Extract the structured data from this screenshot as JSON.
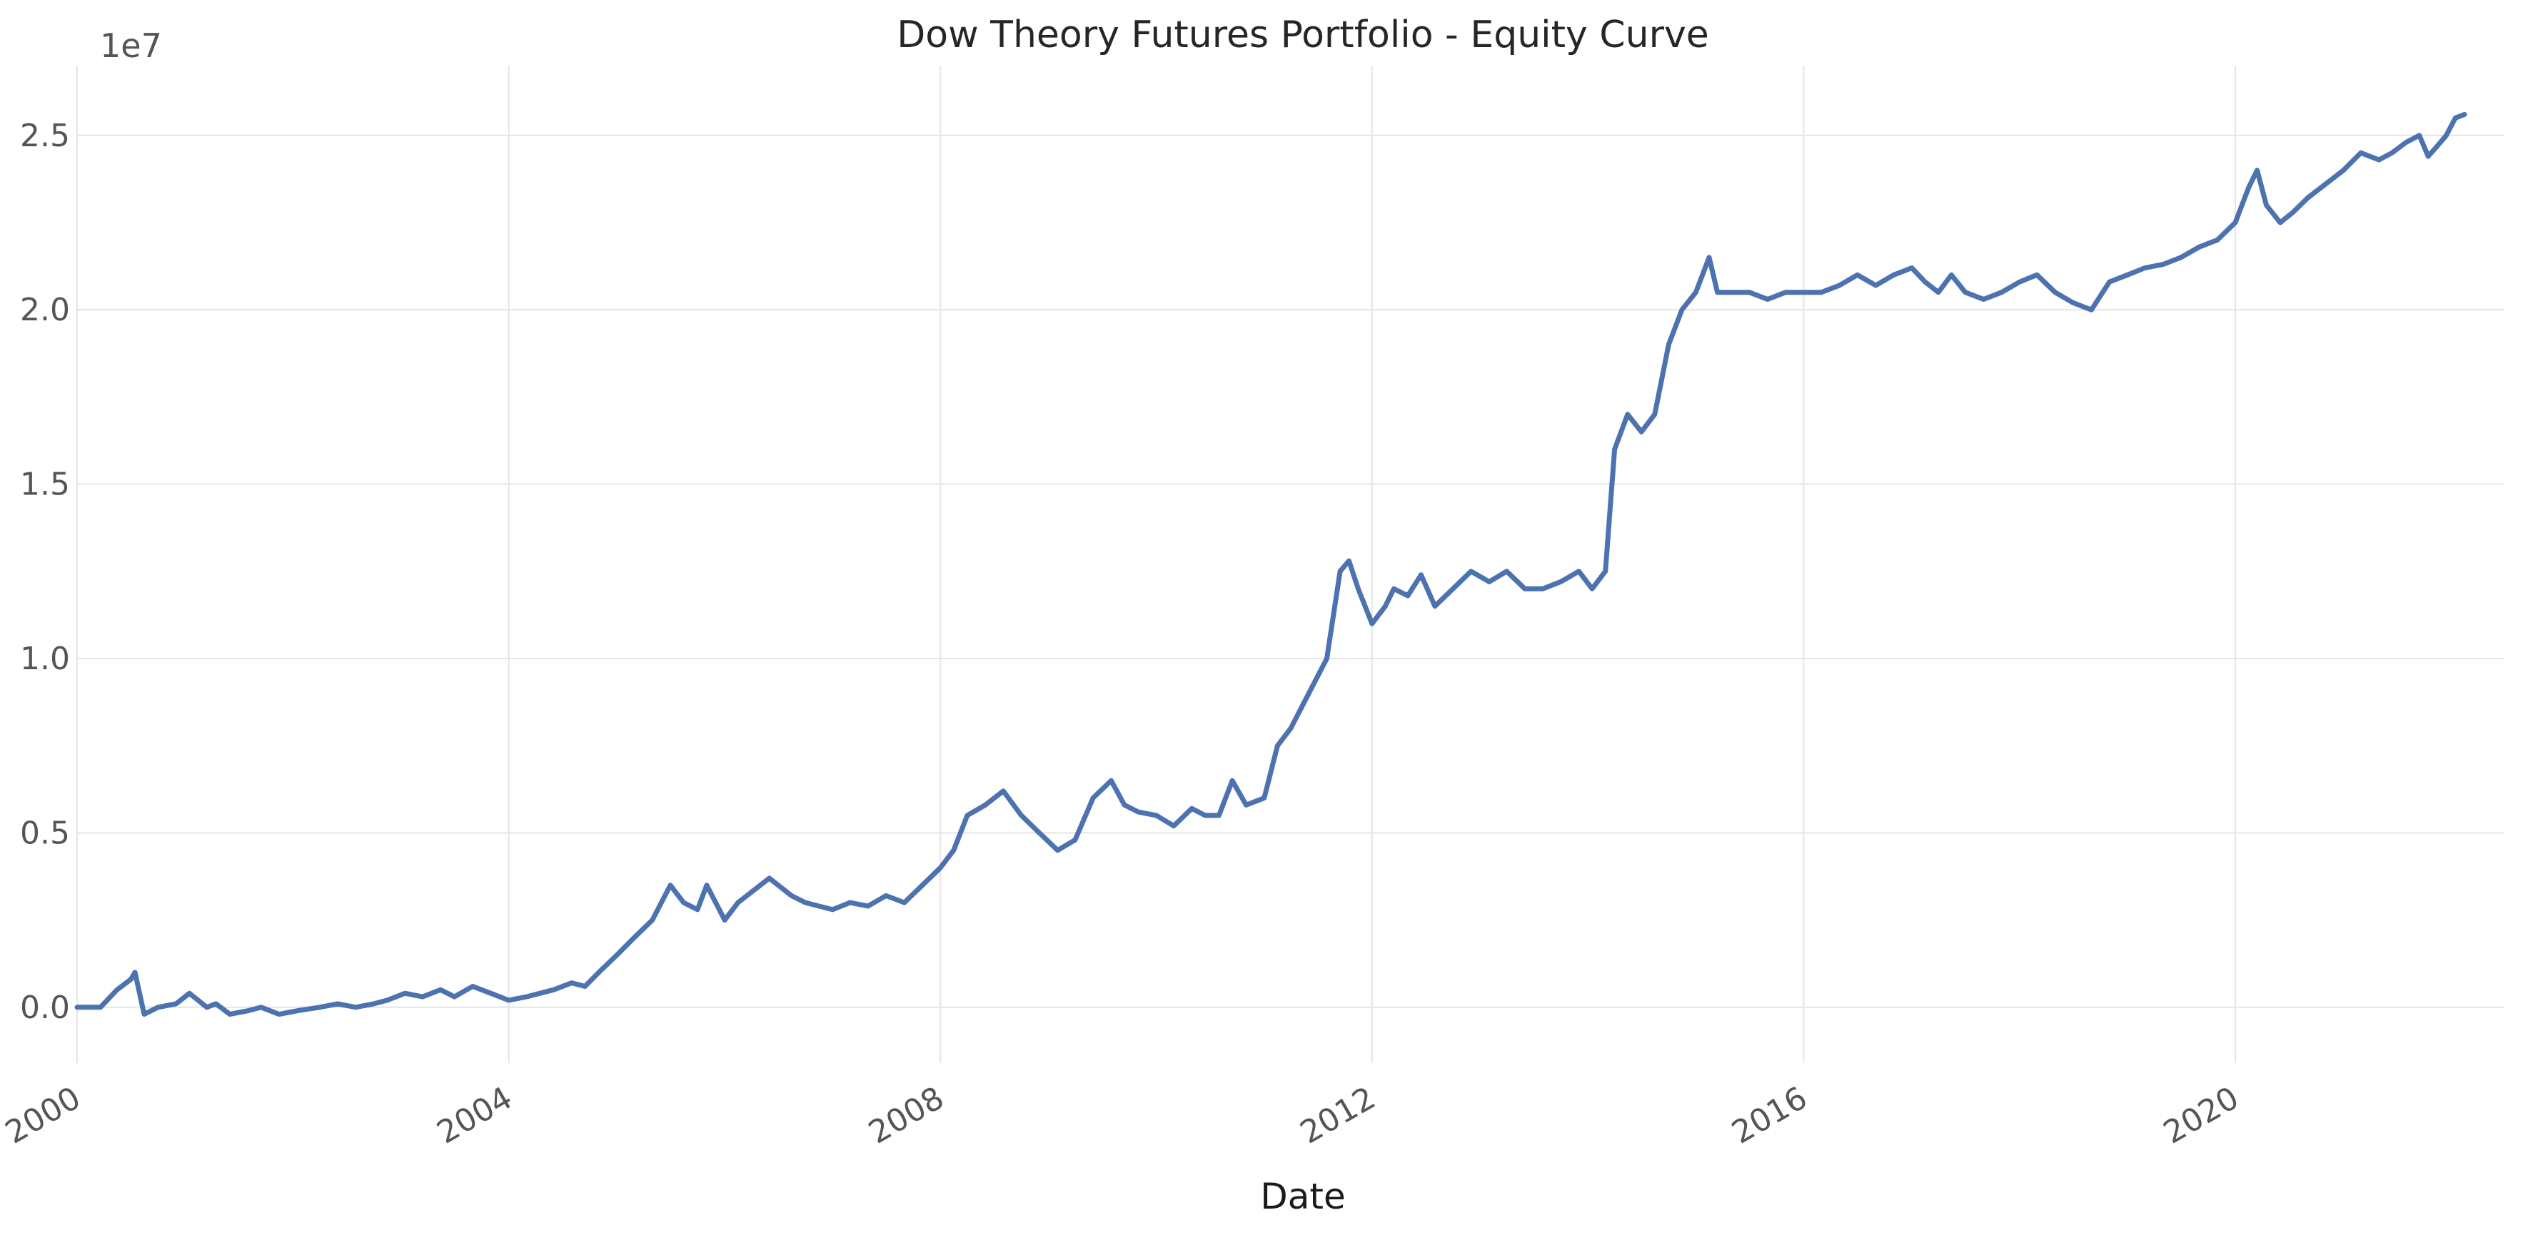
{
  "chart_data": {
    "type": "line",
    "title": "Dow Theory Futures Portfolio - Equity Curve",
    "xlabel": "Date",
    "ylabel": "",
    "y_offset_label": "1e7",
    "grid": true,
    "xlim": [
      "2000-01-01",
      "2022-06-30"
    ],
    "ylim": [
      -0.16,
      2.7
    ],
    "x_ticks": [
      "2000",
      "2004",
      "2008",
      "2012",
      "2016",
      "2020"
    ],
    "y_ticks": [
      "0.0",
      "0.5",
      "1.0",
      "1.5",
      "2.0",
      "2.5"
    ],
    "y_tick_values": [
      0.0,
      0.5,
      1.0,
      1.5,
      2.0,
      2.5
    ],
    "line_color": "#4c72b0",
    "series": [
      {
        "x": [
          "2000-01-01",
          "2000-02-15",
          "2000-03-20",
          "2000-05-15",
          "2000-07-01",
          "2000-07-15",
          "2000-08-15",
          "2000-10-01",
          "2000-12-01",
          "2001-01-15",
          "2001-03-15",
          "2001-04-15",
          "2001-06-01",
          "2001-08-01",
          "2001-09-15",
          "2001-11-15",
          "2002-01-15",
          "2002-04-01",
          "2002-06-01",
          "2002-08-01",
          "2002-10-01",
          "2002-11-15",
          "2003-01-15",
          "2003-03-15",
          "2003-05-15",
          "2003-07-01",
          "2003-09-01",
          "2003-11-01",
          "2004-01-01",
          "2004-03-01",
          "2004-06-01",
          "2004-08-01",
          "2004-09-15",
          "2004-11-01",
          "2005-01-01",
          "2005-03-01",
          "2005-05-01",
          "2005-07-01",
          "2005-08-15",
          "2005-10-01",
          "2005-11-01",
          "2006-01-01",
          "2006-02-15",
          "2006-04-01",
          "2006-06-01",
          "2006-08-15",
          "2006-10-01",
          "2007-01-01",
          "2007-03-01",
          "2007-05-01",
          "2007-07-01",
          "2007-09-01",
          "2007-11-01",
          "2008-01-01",
          "2008-02-15",
          "2008-04-01",
          "2008-06-01",
          "2008-08-01",
          "2008-10-01",
          "2008-12-01",
          "2009-02-01",
          "2009-04-01",
          "2009-06-01",
          "2009-08-01",
          "2009-09-15",
          "2009-11-01",
          "2010-01-01",
          "2010-03-01",
          "2010-05-01",
          "2010-06-15",
          "2010-08-01",
          "2010-09-15",
          "2010-11-01",
          "2011-01-01",
          "2011-02-15",
          "2011-04-01",
          "2011-06-01",
          "2011-08-01",
          "2011-09-15",
          "2011-10-15",
          "2011-11-15",
          "2012-01-01",
          "2012-02-15",
          "2012-03-15",
          "2012-05-01",
          "2012-06-15",
          "2012-08-01",
          "2012-10-01",
          "2012-12-01",
          "2013-02-01",
          "2013-04-01",
          "2013-06-01",
          "2013-08-01",
          "2013-10-01",
          "2013-12-01",
          "2014-01-15",
          "2014-03-01",
          "2014-04-01",
          "2014-05-15",
          "2014-07-01",
          "2014-08-15",
          "2014-10-01",
          "2014-11-15",
          "2015-01-01",
          "2015-02-15",
          "2015-03-15",
          "2015-05-01",
          "2015-07-01",
          "2015-09-01",
          "2015-11-01",
          "2016-01-01",
          "2016-03-01",
          "2016-05-01",
          "2016-07-01",
          "2016-09-01",
          "2016-11-01",
          "2017-01-01",
          "2017-02-15",
          "2017-04-01",
          "2017-05-15",
          "2017-07-01",
          "2017-09-01",
          "2017-11-01",
          "2018-01-01",
          "2018-03-01",
          "2018-05-01",
          "2018-07-01",
          "2018-09-01",
          "2018-11-01",
          "2019-01-01",
          "2019-03-01",
          "2019-05-01",
          "2019-07-01",
          "2019-09-01",
          "2019-11-01",
          "2020-01-01",
          "2020-02-15",
          "2020-03-15",
          "2020-04-15",
          "2020-06-01",
          "2020-07-15",
          "2020-09-01",
          "2020-11-01",
          "2021-01-01",
          "2021-03-01",
          "2021-05-01",
          "2021-06-15",
          "2021-08-01",
          "2021-09-15",
          "2021-10-15",
          "2021-11-15",
          "2021-12-15",
          "2022-01-15",
          "2022-02-15"
        ],
        "values": [
          0.0,
          0.0,
          0.0,
          0.05,
          0.08,
          0.1,
          -0.02,
          0.0,
          0.01,
          0.04,
          0.0,
          0.01,
          -0.02,
          -0.01,
          0.0,
          -0.02,
          -0.01,
          0.0,
          0.01,
          0.0,
          0.01,
          0.02,
          0.04,
          0.03,
          0.05,
          0.03,
          0.06,
          0.04,
          0.02,
          0.03,
          0.05,
          0.07,
          0.06,
          0.1,
          0.15,
          0.2,
          0.25,
          0.35,
          0.3,
          0.28,
          0.35,
          0.25,
          0.3,
          0.33,
          0.37,
          0.32,
          0.3,
          0.28,
          0.3,
          0.29,
          0.32,
          0.3,
          0.35,
          0.4,
          0.45,
          0.55,
          0.58,
          0.62,
          0.55,
          0.5,
          0.45,
          0.48,
          0.6,
          0.65,
          0.58,
          0.56,
          0.55,
          0.52,
          0.57,
          0.55,
          0.55,
          0.65,
          0.58,
          0.6,
          0.75,
          0.8,
          0.9,
          1.0,
          1.25,
          1.28,
          1.2,
          1.1,
          1.15,
          1.2,
          1.18,
          1.24,
          1.15,
          1.2,
          1.25,
          1.22,
          1.25,
          1.2,
          1.2,
          1.22,
          1.25,
          1.2,
          1.25,
          1.6,
          1.7,
          1.65,
          1.7,
          1.9,
          2.0,
          2.05,
          2.15,
          2.05,
          2.05,
          2.05,
          2.03,
          2.05,
          2.05,
          2.05,
          2.07,
          2.1,
          2.07,
          2.1,
          2.12,
          2.08,
          2.05,
          2.1,
          2.05,
          2.03,
          2.05,
          2.08,
          2.1,
          2.05,
          2.02,
          2.0,
          2.08,
          2.1,
          2.12,
          2.13,
          2.15,
          2.18,
          2.2,
          2.25,
          2.35,
          2.4,
          2.3,
          2.25,
          2.28,
          2.32,
          2.36,
          2.4,
          2.45,
          2.43,
          2.45,
          2.48,
          2.5,
          2.44,
          2.47,
          2.5,
          2.55,
          2.56
        ]
      }
    ]
  }
}
